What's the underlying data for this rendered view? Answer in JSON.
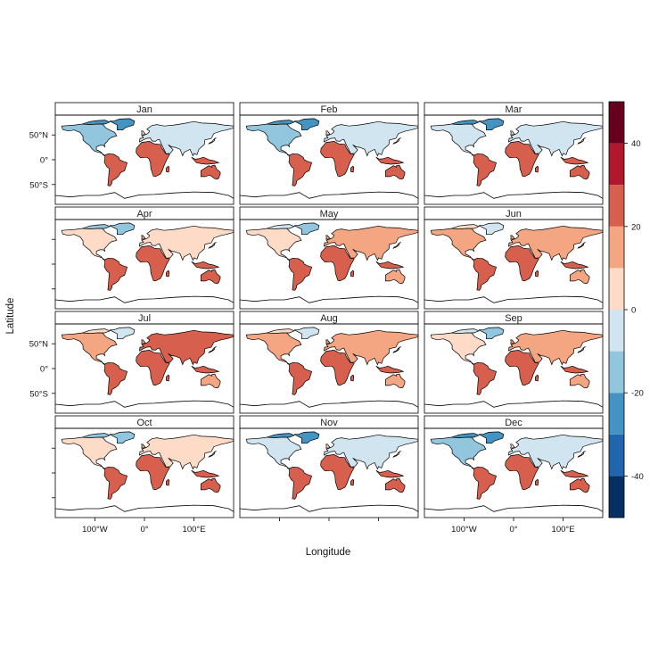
{
  "chart_data": {
    "type": "heatmap",
    "layout": {
      "columns": 3,
      "rows": 4
    },
    "panels": [
      "Jan",
      "Feb",
      "Mar",
      "Apr",
      "May",
      "Jun",
      "Jul",
      "Aug",
      "Sep",
      "Oct",
      "Nov",
      "Dec"
    ],
    "xlabel": "Longitude",
    "ylabel": "Latitude",
    "x_ticks": [
      {
        "value": -100,
        "label": "100°W"
      },
      {
        "value": 0,
        "label": "0°"
      },
      {
        "value": 100,
        "label": "100°E"
      }
    ],
    "y_ticks": [
      {
        "value": 50,
        "label": "50°N"
      },
      {
        "value": 0,
        "label": "0°"
      },
      {
        "value": -50,
        "label": "50°S"
      }
    ],
    "xlim": [
      -180,
      180
    ],
    "ylim": [
      -90,
      90
    ],
    "x_ticks_labeled_in_columns": [
      1,
      3
    ],
    "y_ticks_labeled_in_rows": [
      1,
      3
    ],
    "colorbar": {
      "range": [
        -50,
        50
      ],
      "breaks": [
        -50,
        -40,
        -30,
        -20,
        -10,
        0,
        10,
        20,
        30,
        40,
        50
      ],
      "tick_values": [
        -40,
        -20,
        0,
        20,
        40
      ],
      "tick_labels": [
        "-40",
        "-20",
        "0",
        "20",
        "40"
      ],
      "colors": [
        "#053061",
        "#2166ac",
        "#4393c3",
        "#92c5de",
        "#d1e5f0",
        "#fddbc7",
        "#f4a582",
        "#d6604d",
        "#b2182b",
        "#67001f"
      ]
    },
    "value_note_unprinted": true
  }
}
